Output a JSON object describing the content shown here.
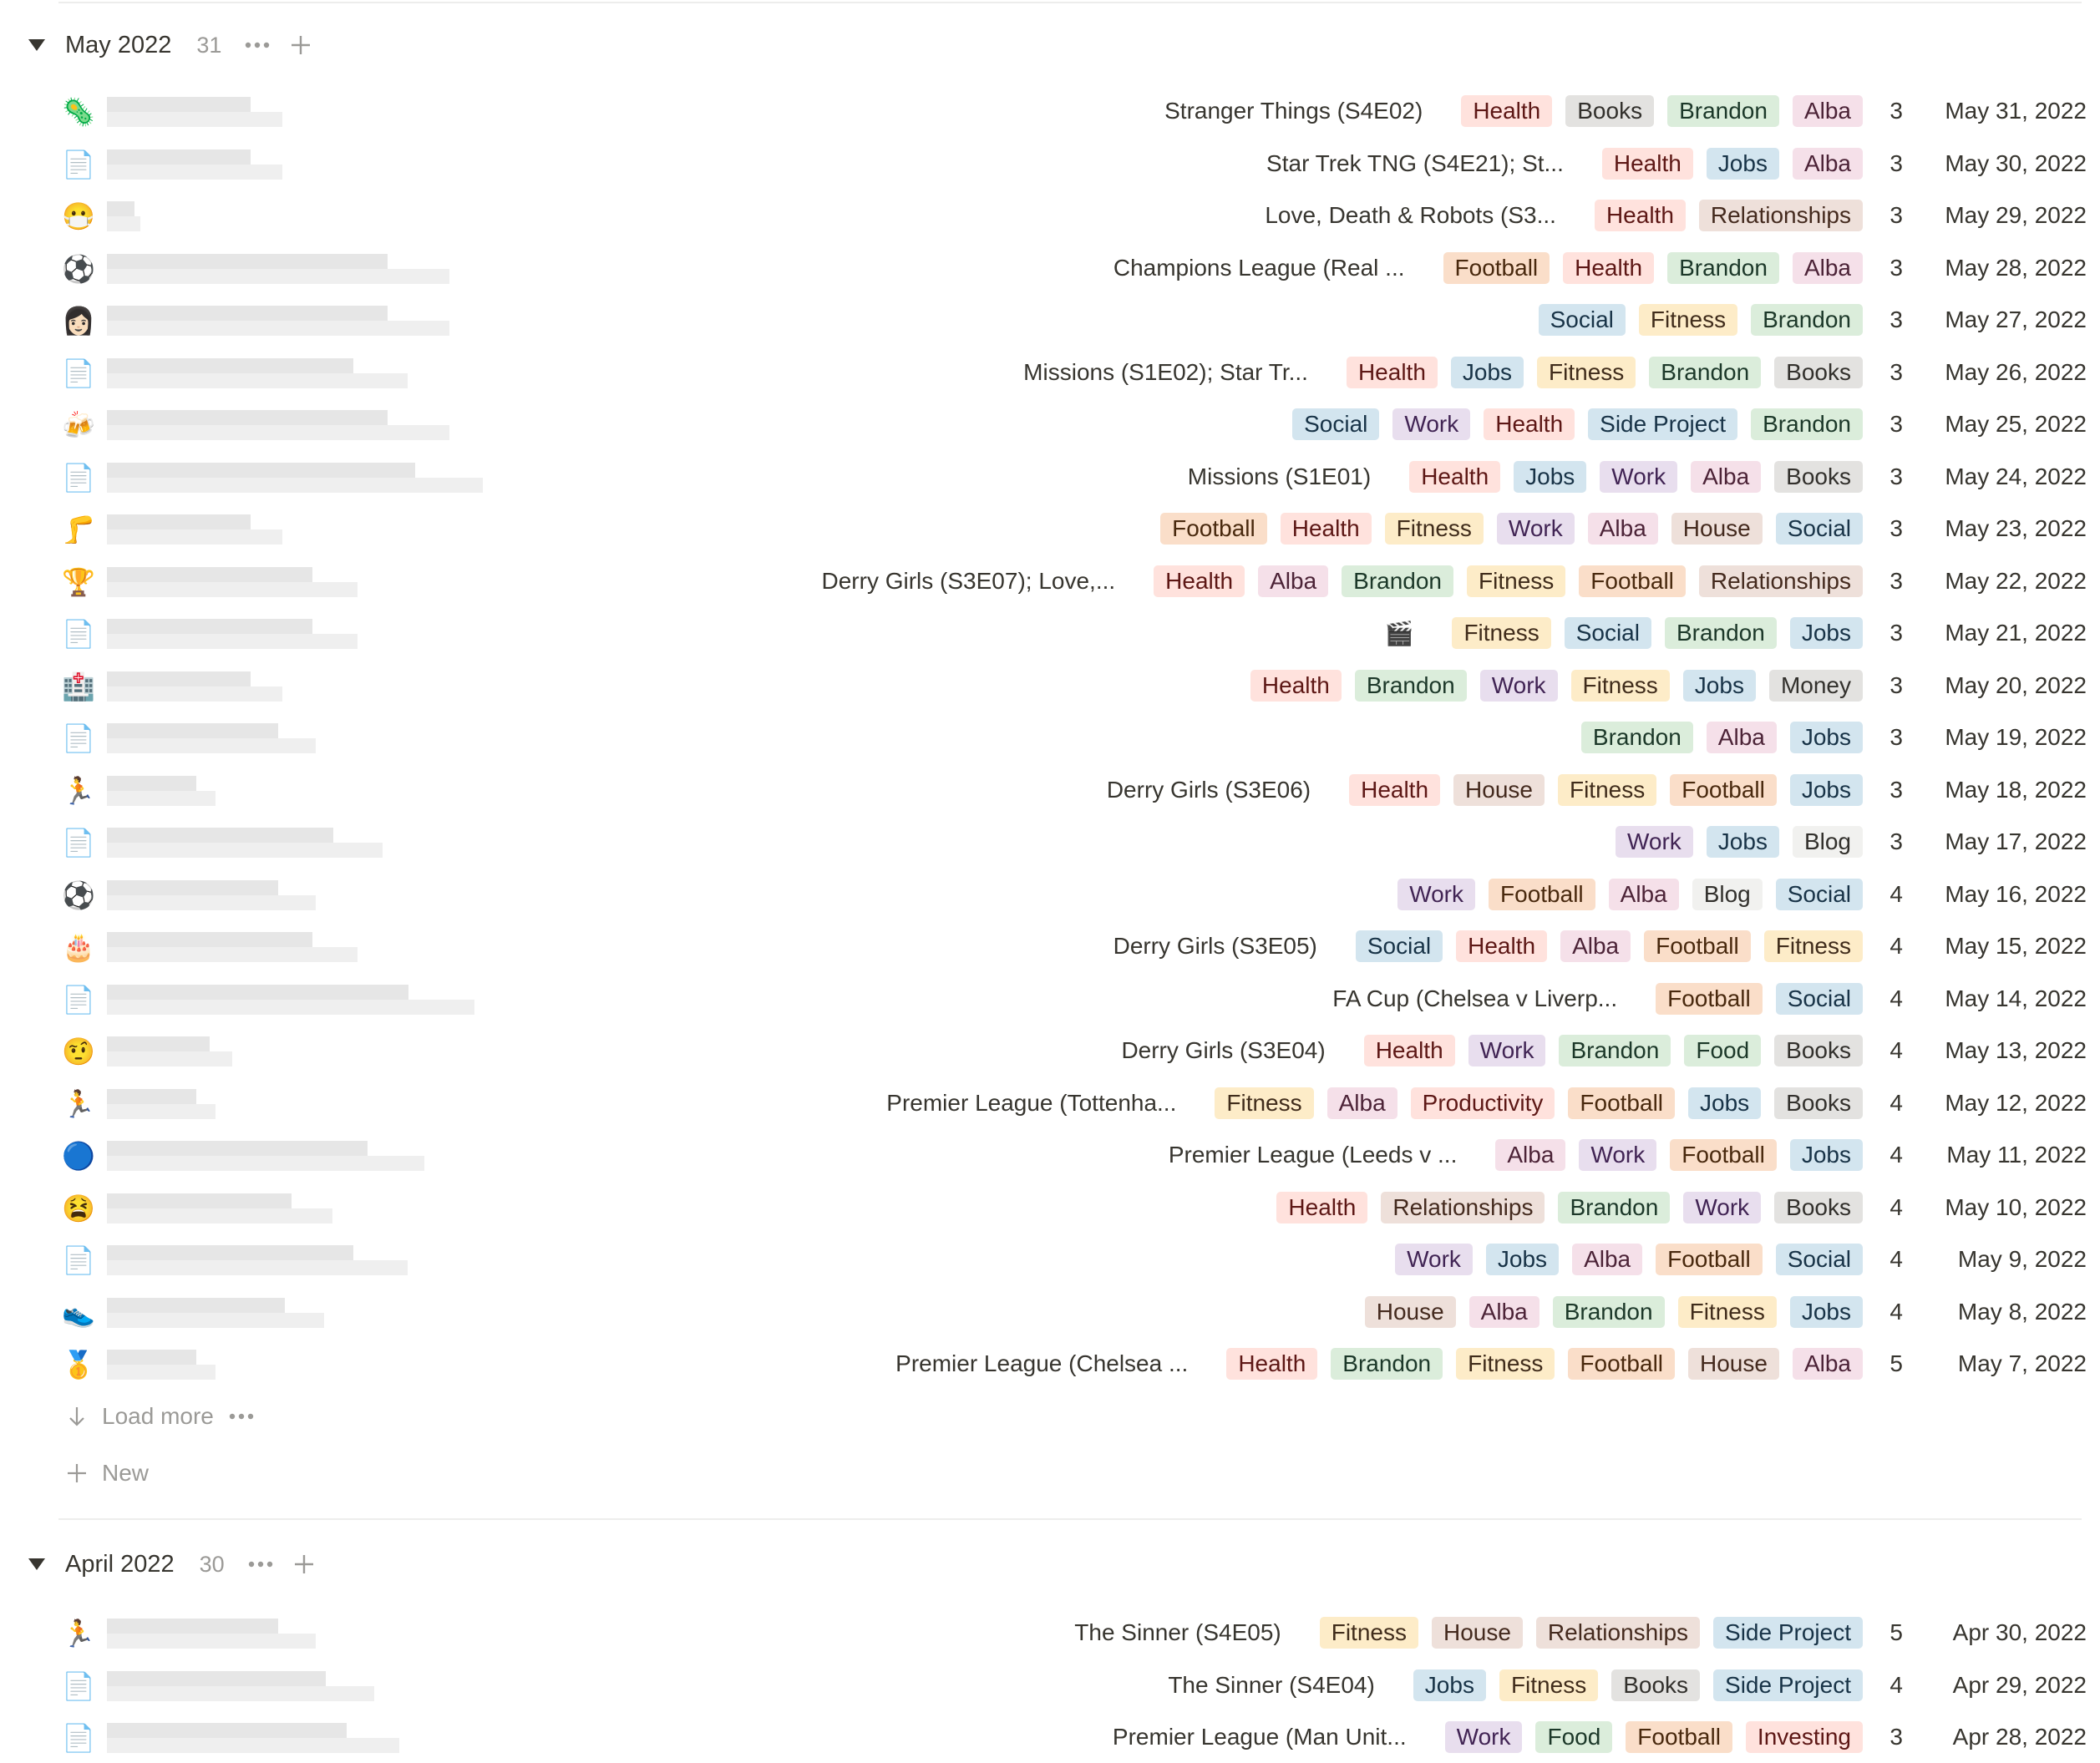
{
  "groups": [
    {
      "title": "May 2022",
      "count": "31",
      "rows": [
        {
          "icon": "🦠",
          "media": "Stranger Things (S4E02)",
          "tags": [
            "Health",
            "Books",
            "Brandon",
            "Alba"
          ],
          "num": "3",
          "date": "May 31, 2022"
        },
        {
          "icon": "📄",
          "media": "Star Trek TNG (S4E21); St...",
          "tags": [
            "Health",
            "Jobs",
            "Alba"
          ],
          "num": "3",
          "date": "May 30, 2022"
        },
        {
          "icon": "😷",
          "media": "Love, Death & Robots (S3...",
          "tags": [
            "Health",
            "Relationships"
          ],
          "num": "3",
          "date": "May 29, 2022"
        },
        {
          "icon": "⚽",
          "media": "Champions League (Real ...",
          "tags": [
            "Football",
            "Health",
            "Brandon",
            "Alba"
          ],
          "num": "3",
          "date": "May 28, 2022"
        },
        {
          "icon": "👩🏻",
          "media": "",
          "tags": [
            "Social",
            "Fitness",
            "Brandon"
          ],
          "num": "3",
          "date": "May 27, 2022"
        },
        {
          "icon": "📄",
          "media": "Missions (S1E02); Star Tr...",
          "tags": [
            "Health",
            "Jobs",
            "Fitness",
            "Brandon",
            "Books"
          ],
          "num": "3",
          "date": "May 26, 2022"
        },
        {
          "icon": "🍻",
          "media": "",
          "tags": [
            "Social",
            "Work",
            "Health",
            "Side Project",
            "Brandon"
          ],
          "num": "3",
          "date": "May 25, 2022"
        },
        {
          "icon": "📄",
          "media": "Missions (S1E01)",
          "tags": [
            "Health",
            "Jobs",
            "Work",
            "Alba",
            "Books"
          ],
          "num": "3",
          "date": "May 24, 2022"
        },
        {
          "icon": "🦵",
          "media": "",
          "tags": [
            "Football",
            "Health",
            "Fitness",
            "Work",
            "Alba",
            "House",
            "Social"
          ],
          "num": "3",
          "date": "May 23, 2022"
        },
        {
          "icon": "🏆",
          "media": "Derry Girls (S3E07); Love,...",
          "tags": [
            "Health",
            "Alba",
            "Brandon",
            "Fitness",
            "Football",
            "Relationships"
          ],
          "num": "3",
          "date": "May 22, 2022"
        },
        {
          "icon": "📄",
          "media": "🎬",
          "tags": [
            "Fitness",
            "Social",
            "Brandon",
            "Jobs"
          ],
          "num": "3",
          "date": "May 21, 2022"
        },
        {
          "icon": "🏥",
          "media": "",
          "tags": [
            "Health",
            "Brandon",
            "Work",
            "Fitness",
            "Jobs",
            "Money"
          ],
          "num": "3",
          "date": "May 20, 2022"
        },
        {
          "icon": "📄",
          "media": "",
          "tags": [
            "Brandon",
            "Alba",
            "Jobs"
          ],
          "num": "3",
          "date": "May 19, 2022"
        },
        {
          "icon": "🏃",
          "media": "Derry Girls (S3E06)",
          "tags": [
            "Health",
            "House",
            "Fitness",
            "Football",
            "Jobs"
          ],
          "num": "3",
          "date": "May 18, 2022"
        },
        {
          "icon": "📄",
          "media": "",
          "tags": [
            "Work",
            "Jobs",
            "Blog"
          ],
          "num": "3",
          "date": "May 17, 2022"
        },
        {
          "icon": "⚽",
          "media": "",
          "tags": [
            "Work",
            "Football",
            "Alba",
            "Blog",
            "Social"
          ],
          "num": "4",
          "date": "May 16, 2022"
        },
        {
          "icon": "🎂",
          "media": "Derry Girls (S3E05)",
          "tags": [
            "Social",
            "Health",
            "Alba",
            "Football",
            "Fitness"
          ],
          "num": "4",
          "date": "May 15, 2022"
        },
        {
          "icon": "📄",
          "media": "FA Cup (Chelsea v Liverp...",
          "tags": [
            "Football",
            "Social"
          ],
          "num": "4",
          "date": "May 14, 2022"
        },
        {
          "icon": "🤨",
          "media": "Derry Girls (S3E04)",
          "tags": [
            "Health",
            "Work",
            "Brandon",
            "Food",
            "Books"
          ],
          "num": "4",
          "date": "May 13, 2022"
        },
        {
          "icon": "🏃",
          "media": "Premier League (Tottenha...",
          "tags": [
            "Fitness",
            "Alba",
            "Productivity",
            "Football",
            "Jobs",
            "Books"
          ],
          "num": "4",
          "date": "May 12, 2022"
        },
        {
          "icon": "🔵",
          "media": "Premier League (Leeds v ...",
          "tags": [
            "Alba",
            "Work",
            "Football",
            "Jobs"
          ],
          "num": "4",
          "date": "May 11, 2022"
        },
        {
          "icon": "😫",
          "media": "",
          "tags": [
            "Health",
            "Relationships",
            "Brandon",
            "Work",
            "Books"
          ],
          "num": "4",
          "date": "May 10, 2022"
        },
        {
          "icon": "📄",
          "media": "",
          "tags": [
            "Work",
            "Jobs",
            "Alba",
            "Football",
            "Social"
          ],
          "num": "4",
          "date": "May 9, 2022"
        },
        {
          "icon": "👟",
          "media": "",
          "tags": [
            "House",
            "Alba",
            "Brandon",
            "Fitness",
            "Jobs"
          ],
          "num": "4",
          "date": "May 8, 2022"
        },
        {
          "icon": "🥇",
          "media": "Premier League (Chelsea ...",
          "tags": [
            "Health",
            "Brandon",
            "Fitness",
            "Football",
            "House",
            "Alba"
          ],
          "num": "5",
          "date": "May 7, 2022"
        }
      ]
    },
    {
      "title": "April 2022",
      "count": "30",
      "rows": [
        {
          "icon": "🏃",
          "media": "The Sinner (S4E05)",
          "tags": [
            "Fitness",
            "House",
            "Relationships",
            "Side Project"
          ],
          "num": "5",
          "date": "Apr 30, 2022"
        },
        {
          "icon": "📄",
          "media": "The Sinner (S4E04)",
          "tags": [
            "Jobs",
            "Fitness",
            "Books",
            "Side Project"
          ],
          "num": "4",
          "date": "Apr 29, 2022"
        },
        {
          "icon": "📄",
          "media": "Premier League (Man Unit...",
          "tags": [
            "Work",
            "Food",
            "Football",
            "Investing"
          ],
          "num": "3",
          "date": "Apr 28, 2022"
        }
      ]
    }
  ],
  "load_more_label": "Load more",
  "new_label": "New"
}
